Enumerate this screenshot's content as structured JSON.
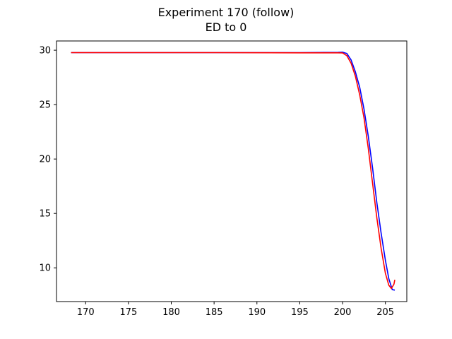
{
  "chart_data": {
    "type": "line",
    "title": [
      "Experiment 170 (follow)",
      "ED to 0"
    ],
    "xlim": [
      166.6,
      207.5
    ],
    "ylim": [
      6.9,
      30.85
    ],
    "xticks": [
      170,
      175,
      180,
      185,
      190,
      195,
      200,
      205
    ],
    "yticks": [
      10,
      15,
      20,
      25,
      30
    ],
    "grid": false,
    "series": [
      {
        "color": "#0000ff",
        "x": [
          168.3,
          175,
          185,
          195,
          199.5,
          200.0,
          200.5,
          201.0,
          201.5,
          202.0,
          202.5,
          203.0,
          203.5,
          204.0,
          204.5,
          205.0,
          205.4,
          205.8,
          206.1
        ],
        "y": [
          29.78,
          29.78,
          29.78,
          29.78,
          29.8,
          29.82,
          29.7,
          29.1,
          28.0,
          26.6,
          24.6,
          22.1,
          19.2,
          16.0,
          13.2,
          10.7,
          9.0,
          8.0,
          7.95
        ]
      },
      {
        "color": "#ff0000",
        "x": [
          168.3,
          175,
          185,
          195,
          199.5,
          200.0,
          200.5,
          201.0,
          201.5,
          202.0,
          202.5,
          203.0,
          203.5,
          204.0,
          204.5,
          205.0,
          205.4,
          205.7,
          206.0,
          206.1
        ],
        "y": [
          29.78,
          29.78,
          29.78,
          29.76,
          29.76,
          29.75,
          29.5,
          28.8,
          27.6,
          25.9,
          23.8,
          21.0,
          17.8,
          14.6,
          11.8,
          9.5,
          8.4,
          8.1,
          8.5,
          8.9
        ]
      }
    ]
  }
}
